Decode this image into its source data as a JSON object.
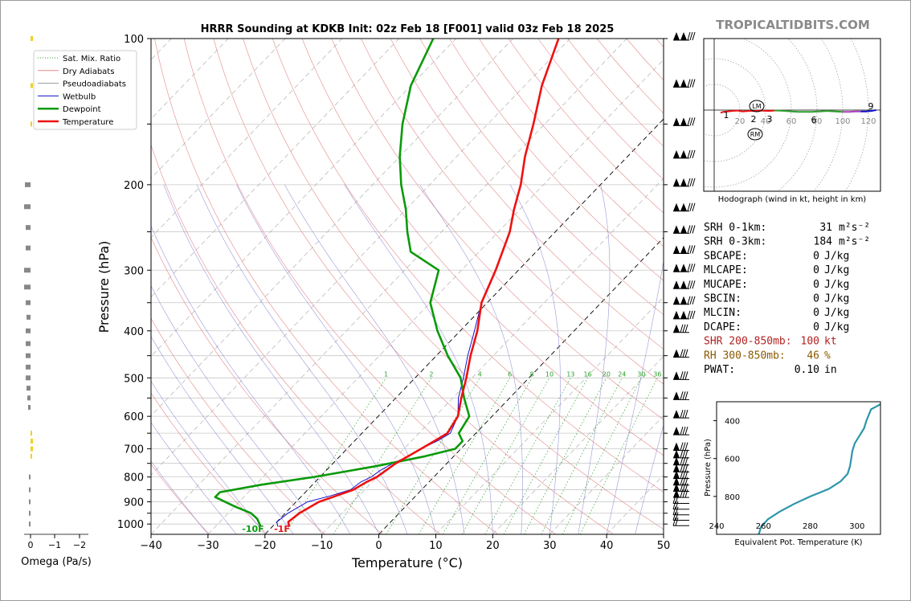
{
  "page": {
    "title": "HRRR Sounding at KDKB Init: 02z Feb 18 [F001] valid 03z Feb 18 2025",
    "brand": "TROPICALTIDBITS.COM"
  },
  "skewt": {
    "xlabel": "Temperature (°C)",
    "ylabel": "Pressure (hPa)",
    "temp_ticks": [
      -40,
      -30,
      -20,
      -10,
      0,
      10,
      20,
      30,
      40,
      50
    ],
    "pressure_ticks": [
      100,
      200,
      300,
      400,
      500,
      600,
      700,
      800,
      900,
      1000
    ],
    "mixing_ratio_labels": [
      "1",
      "2",
      "4",
      "6",
      "8",
      "10",
      "13",
      "16",
      "20",
      "24",
      "30",
      "36"
    ],
    "surface_dewpoint_label": "-10F",
    "surface_temp_label": "-1F",
    "legend": [
      {
        "label": "Sat. Mix. Ratio",
        "color": "#2ca02c",
        "style": "dotted"
      },
      {
        "label": "Dry Adiabats",
        "color": "#e38a8a",
        "style": "solid"
      },
      {
        "label": "Pseudoadiabats",
        "color": "#9a9a9a",
        "style": "solid"
      },
      {
        "label": "Wetbulb",
        "color": "#1010cc",
        "style": "solid"
      },
      {
        "label": "Dewpoint",
        "color": "#0a9a0a",
        "style": "solid"
      },
      {
        "label": "Temperature",
        "color": "#ee1111",
        "style": "solid"
      }
    ]
  },
  "omega": {
    "xlabel": "Omega (Pa/s)",
    "ticks": [
      "0",
      "−1",
      "−2"
    ]
  },
  "hodograph": {
    "caption": "Hodograph (wind in kt, height in km)",
    "ring_labels": [
      "20",
      "40",
      "60",
      "80",
      "100",
      "120"
    ],
    "height_labels": [
      "1",
      "2",
      "3",
      "6",
      "9"
    ],
    "markers": [
      "LM",
      "RM"
    ]
  },
  "indices": [
    {
      "label": "SRH 0-1km:",
      "value": "31",
      "unit": "m²s⁻²",
      "color": "#000000"
    },
    {
      "label": "SRH 0-3km:",
      "value": "184",
      "unit": "m²s⁻²",
      "color": "#000000"
    },
    {
      "label": "SBCAPE:",
      "value": "0",
      "unit": "J/kg",
      "color": "#000000"
    },
    {
      "label": "MLCAPE:",
      "value": "0",
      "unit": "J/kg",
      "color": "#000000"
    },
    {
      "label": "MUCAPE:",
      "value": "0",
      "unit": "J/kg",
      "color": "#000000"
    },
    {
      "label": "SBCIN:",
      "value": "0",
      "unit": "J/kg",
      "color": "#000000"
    },
    {
      "label": "MLCIN:",
      "value": "0",
      "unit": "J/kg",
      "color": "#000000"
    },
    {
      "label": "DCAPE:",
      "value": "0",
      "unit": "J/kg",
      "color": "#000000"
    },
    {
      "label": "SHR 200-850mb:",
      "value": "100",
      "unit": "kt",
      "color": "#b22222"
    },
    {
      "label": "RH 300-850mb:",
      "value": "46",
      "unit": "%",
      "color": "#8b5a00"
    },
    {
      "label": "PWAT:",
      "value": "0.10",
      "unit": "in",
      "color": "#000000"
    }
  ],
  "theta_e_panel": {
    "xlabel": "Equivalent Pot. Temperature (K)",
    "ylabel": "Pressure (hPa)",
    "x_ticks": [
      240,
      260,
      280,
      300
    ],
    "y_ticks": [
      400,
      600,
      800
    ]
  },
  "chart_data": [
    {
      "type": "line",
      "title": "HRRR Sounding at KDKB Init: 02z Feb 18 [F001] valid 03z Feb 18 2025",
      "xlabel": "Temperature (°C)",
      "ylabel": "Pressure (hPa)",
      "xlim": [
        -40,
        50
      ],
      "ylim": [
        1050,
        100
      ],
      "y_scale": "log",
      "skew": "skew-T",
      "series": [
        {
          "name": "Temperature",
          "color": "#ee1111",
          "points": [
            [
              -17,
              1013
            ],
            [
              -18,
              990
            ],
            [
              -17.5,
              950
            ],
            [
              -16,
              900
            ],
            [
              -14,
              875
            ],
            [
              -12,
              850
            ],
            [
              -11,
              820
            ],
            [
              -10,
              800
            ],
            [
              -9.5,
              775
            ],
            [
              -9,
              750
            ],
            [
              -8,
              725
            ],
            [
              -7,
              700
            ],
            [
              -6,
              675
            ],
            [
              -5,
              650
            ],
            [
              -6,
              600
            ],
            [
              -8.5,
              550
            ],
            [
              -11,
              500
            ],
            [
              -14,
              450
            ],
            [
              -17,
              400
            ],
            [
              -21,
              350
            ],
            [
              -24,
              300
            ],
            [
              -28,
              250
            ],
            [
              -31,
              225
            ],
            [
              -34,
              200
            ],
            [
              -38,
              175
            ],
            [
              -42,
              150
            ],
            [
              -47,
              125
            ],
            [
              -52,
              100
            ]
          ]
        },
        {
          "name": "Dewpoint",
          "color": "#0a9a0a",
          "points": [
            [
              -22,
              1013
            ],
            [
              -24,
              975
            ],
            [
              -26,
              950
            ],
            [
              -30,
              920
            ],
            [
              -35,
              880
            ],
            [
              -35,
              860
            ],
            [
              -29,
              830
            ],
            [
              -21,
              800
            ],
            [
              -12,
              760
            ],
            [
              -5,
              725
            ],
            [
              -1,
              700
            ],
            [
              -1,
              675
            ],
            [
              -3,
              650
            ],
            [
              -4,
              600
            ],
            [
              -8,
              550
            ],
            [
              -12,
              500
            ],
            [
              -18,
              450
            ],
            [
              -24,
              400
            ],
            [
              -30,
              350
            ],
            [
              -34,
              300
            ],
            [
              -42,
              275
            ],
            [
              -46,
              250
            ],
            [
              -50,
              225
            ],
            [
              -55,
              200
            ],
            [
              -60,
              175
            ],
            [
              -65,
              150
            ],
            [
              -70,
              125
            ],
            [
              -74,
              100
            ]
          ]
        },
        {
          "name": "Wetbulb",
          "color": "#1010cc",
          "points": [
            [
              -19,
              1013
            ],
            [
              -20,
              990
            ],
            [
              -19.5,
              950
            ],
            [
              -18,
              900
            ],
            [
              -15,
              875
            ],
            [
              -12.5,
              850
            ],
            [
              -12,
              820
            ],
            [
              -11,
              800
            ],
            [
              -10.5,
              775
            ],
            [
              -9.5,
              750
            ],
            [
              -8,
              725
            ],
            [
              -7,
              700
            ],
            [
              -5.5,
              675
            ],
            [
              -4.5,
              650
            ],
            [
              -6,
              600
            ],
            [
              -9,
              550
            ],
            [
              -11.5,
              500
            ],
            [
              -14.5,
              450
            ],
            [
              -17.5,
              400
            ],
            [
              -21,
              350
            ],
            [
              -24,
              300
            ],
            [
              -28,
              250
            ],
            [
              -31,
              225
            ],
            [
              -34,
              200
            ],
            [
              -38,
              175
            ],
            [
              -42,
              150
            ],
            [
              -47,
              125
            ],
            [
              -52,
              100
            ]
          ]
        }
      ]
    },
    {
      "type": "line",
      "xlabel": "Equivalent Pot. Temperature (K)",
      "ylabel": "Pressure (hPa)",
      "xlim": [
        240,
        310
      ],
      "ylim": [
        1000,
        300
      ],
      "series": [
        {
          "points": [
            [
              258,
              1000
            ],
            [
              259,
              960
            ],
            [
              262,
              920
            ],
            [
              267,
              880
            ],
            [
              273,
              840
            ],
            [
              280,
              800
            ],
            [
              288,
              760
            ],
            [
              293,
              720
            ],
            [
              296,
              680
            ],
            [
              297,
              640
            ],
            [
              297.5,
              600
            ],
            [
              298,
              560
            ],
            [
              299,
              520
            ],
            [
              301,
              480
            ],
            [
              303,
              440
            ],
            [
              304,
              400
            ],
            [
              305,
              370
            ],
            [
              306,
              340
            ],
            [
              309,
              320
            ],
            [
              312,
              300
            ]
          ]
        }
      ]
    },
    {
      "type": "scatter",
      "xlabel": "",
      "ylabel": "",
      "xlim": [
        0,
        130
      ],
      "ylim": [
        -70,
        70
      ],
      "series": [
        {
          "points": [
            [
              5,
              -6
            ],
            [
              7,
              -4
            ],
            [
              10,
              -3
            ],
            [
              14,
              -2
            ],
            [
              18,
              -1
            ],
            [
              22,
              -3
            ],
            [
              27,
              -2
            ],
            [
              31,
              -2
            ],
            [
              36,
              -1
            ],
            [
              42,
              -2
            ],
            [
              47,
              -1
            ],
            [
              50,
              -1
            ],
            [
              56,
              -2
            ],
            [
              60,
              -3
            ],
            [
              66,
              -4
            ],
            [
              71,
              -4
            ],
            [
              76,
              -4
            ],
            [
              82,
              -3
            ],
            [
              88,
              -2
            ],
            [
              94,
              -3
            ],
            [
              100,
              -4
            ],
            [
              105,
              -4
            ],
            [
              110,
              -3
            ],
            [
              114,
              -3
            ],
            [
              118,
              -3
            ],
            [
              122,
              -2
            ],
            [
              126,
              0
            ]
          ]
        }
      ]
    }
  ]
}
